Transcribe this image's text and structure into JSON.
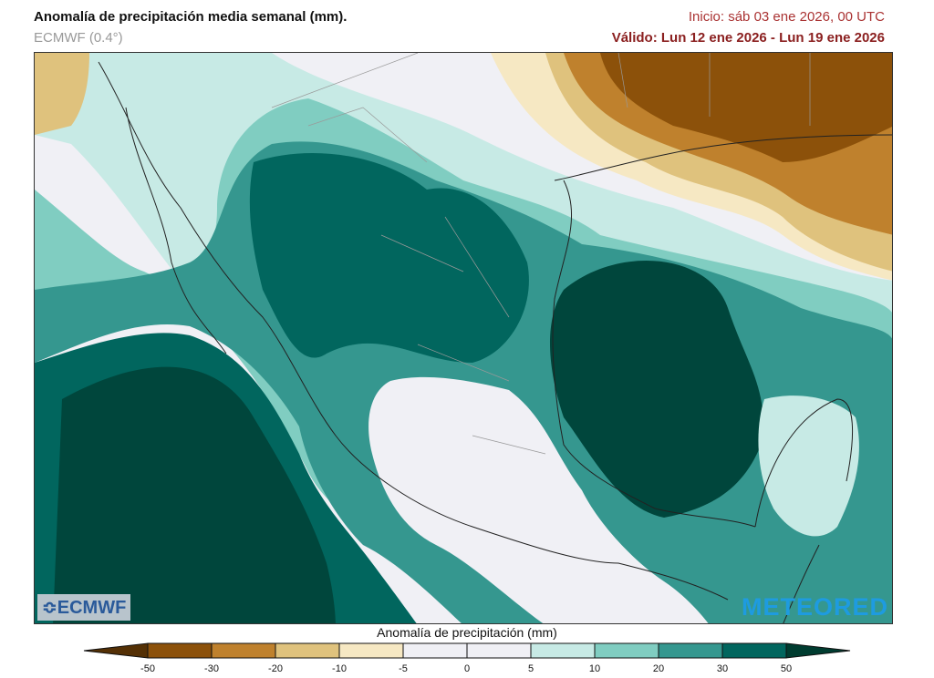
{
  "header": {
    "title": "Anomalía de precipitación media semanal (mm).",
    "model": "ECMWF (0.4°)",
    "init": "Inicio:  sáb 03 ene 2026, 00 UTC",
    "valid": "Válido: Lun 12 ene 2026 - Lun 19 ene 2026"
  },
  "map": {
    "region": "Mexico",
    "logos": {
      "left": "ECMWF",
      "right": "METEORED"
    }
  },
  "colorbar": {
    "title": "Anomalía de precipitación (mm)",
    "ticks": [
      "-50",
      "-30",
      "-20",
      "-10",
      "-5",
      "0",
      "5",
      "10",
      "20",
      "30",
      "50"
    ],
    "colors": [
      "#8c510a",
      "#bf812d",
      "#dfc27d",
      "#f6e8c3",
      "#f0f0f5",
      "#f0f0f5",
      "#c7eae5",
      "#80cdc1",
      "#35978f",
      "#01665e"
    ],
    "under_color": "#543005",
    "over_color": "#003c30"
  }
}
